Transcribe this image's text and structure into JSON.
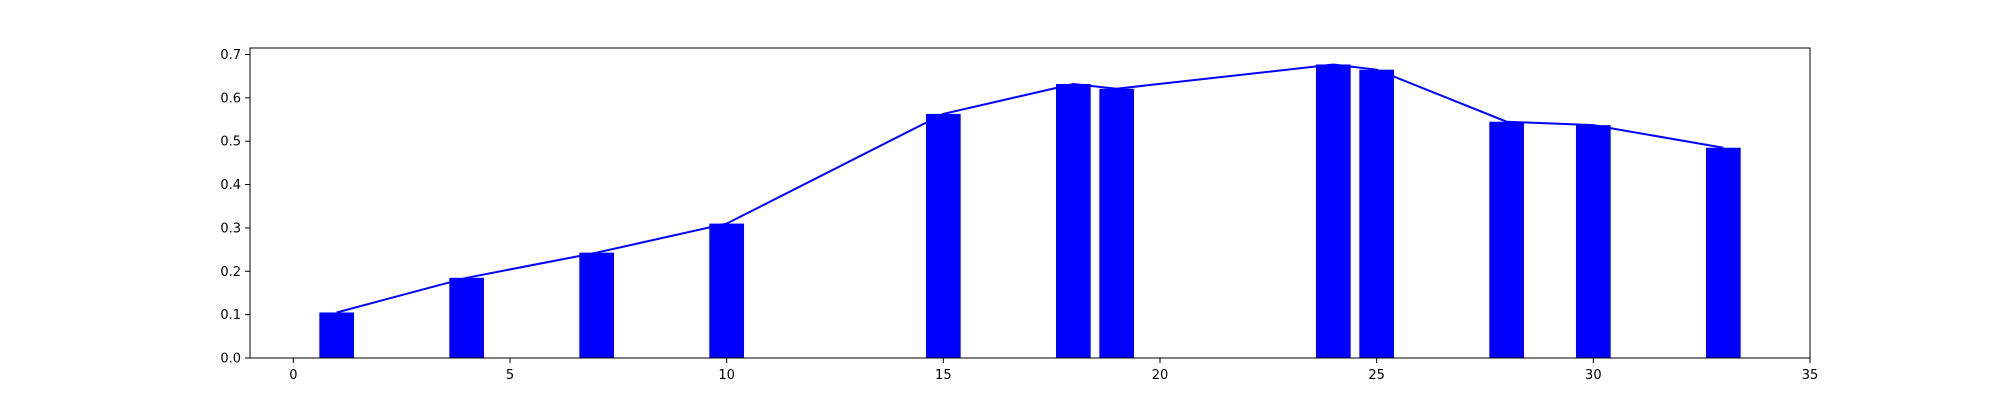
{
  "chart_data": {
    "type": "bar",
    "title": "",
    "xlabel": "",
    "ylabel": "",
    "xlim": [
      -1,
      35
    ],
    "ylim": [
      0,
      0.715
    ],
    "grid": false,
    "x_ticks": [
      0,
      5,
      10,
      15,
      20,
      25,
      30,
      35
    ],
    "y_ticks": [
      0.0,
      0.1,
      0.2,
      0.3,
      0.4,
      0.5,
      0.6,
      0.7
    ],
    "bar_width": 0.8,
    "color": "#0000ff",
    "x": [
      1,
      4,
      7,
      10,
      15,
      18,
      19,
      24,
      25,
      28,
      30,
      33
    ],
    "values": [
      0.105,
      0.185,
      0.243,
      0.31,
      0.563,
      0.632,
      0.621,
      0.677,
      0.665,
      0.545,
      0.537,
      0.485
    ],
    "line": {
      "x": [
        1,
        4,
        7,
        10,
        15,
        18,
        19,
        24,
        25,
        28,
        30,
        33
      ],
      "values": [
        0.105,
        0.185,
        0.243,
        0.31,
        0.563,
        0.632,
        0.621,
        0.677,
        0.665,
        0.545,
        0.537,
        0.485
      ],
      "color": "#0000ff"
    }
  }
}
